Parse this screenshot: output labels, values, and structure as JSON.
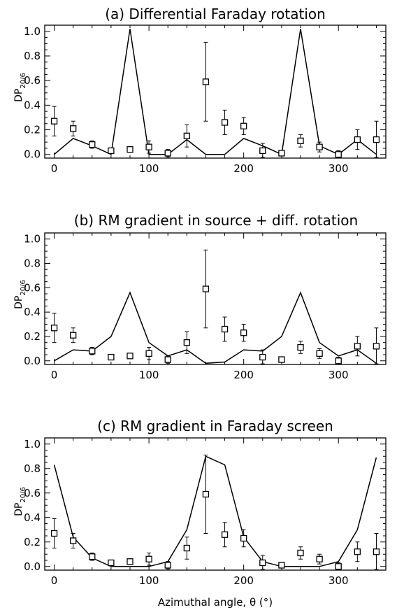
{
  "chart_data": [
    {
      "type": "line",
      "title": "(a) Differential Faraday rotation",
      "ylabel": "DP",
      "ylabel_sub": "20/6",
      "xlabel": "",
      "xlim": [
        -10,
        350
      ],
      "ylim": [
        -0.03,
        1.05
      ],
      "xticks": [
        "0",
        "100",
        "200",
        "300"
      ],
      "yticks": [
        "0.0",
        "0.2",
        "0.4",
        "0.6",
        "0.8",
        "1.0"
      ],
      "grid": false,
      "legend": "none",
      "series": [
        {
          "kind": "line",
          "x": [
            0,
            20,
            40,
            60,
            80,
            100,
            120,
            140,
            160,
            180,
            200,
            220,
            240,
            260,
            280,
            300,
            320,
            340
          ],
          "y": [
            0.0,
            0.13,
            0.07,
            0.0,
            1.02,
            0.0,
            0.0,
            0.12,
            0.0,
            0.0,
            0.13,
            0.07,
            0.0,
            1.02,
            0.07,
            0.0,
            0.12,
            0.0
          ]
        },
        {
          "kind": "points",
          "marker": "square",
          "x": [
            0,
            20,
            40,
            60,
            80,
            100,
            120,
            140,
            160,
            180,
            200,
            220,
            240,
            260,
            280,
            300,
            320,
            340
          ],
          "y": [
            0.27,
            0.21,
            0.08,
            0.03,
            0.04,
            0.06,
            0.01,
            0.15,
            0.59,
            0.26,
            0.23,
            0.03,
            0.01,
            0.11,
            0.06,
            0.0,
            0.12,
            0.12
          ],
          "err": [
            0.12,
            0.06,
            0.03,
            0.02,
            0.02,
            0.05,
            0.03,
            0.09,
            0.32,
            0.1,
            0.07,
            0.06,
            0.02,
            0.05,
            0.04,
            0.03,
            0.08,
            0.15
          ]
        }
      ]
    },
    {
      "type": "line",
      "title": "(b) RM gradient in source + diff. rotation",
      "ylabel": "DP",
      "ylabel_sub": "20/6",
      "xlabel": "",
      "xlim": [
        -10,
        350
      ],
      "ylim": [
        -0.03,
        1.05
      ],
      "xticks": [
        "0",
        "100",
        "200",
        "300"
      ],
      "yticks": [
        "0.0",
        "0.2",
        "0.4",
        "0.6",
        "0.8",
        "1.0"
      ],
      "grid": false,
      "legend": "none",
      "series": [
        {
          "kind": "line",
          "x": [
            0,
            20,
            40,
            60,
            80,
            100,
            120,
            140,
            160,
            180,
            200,
            220,
            240,
            260,
            280,
            300,
            320,
            340
          ],
          "y": [
            0.0,
            0.09,
            0.08,
            0.2,
            0.56,
            0.15,
            0.04,
            0.09,
            -0.02,
            -0.01,
            0.09,
            0.08,
            0.2,
            0.56,
            0.15,
            0.04,
            0.09,
            -0.02
          ]
        },
        {
          "kind": "points",
          "marker": "square",
          "x": [
            0,
            20,
            40,
            60,
            80,
            100,
            120,
            140,
            160,
            180,
            200,
            220,
            240,
            260,
            280,
            300,
            320,
            340
          ],
          "y": [
            0.27,
            0.21,
            0.08,
            0.03,
            0.04,
            0.06,
            0.01,
            0.15,
            0.59,
            0.26,
            0.23,
            0.03,
            0.01,
            0.11,
            0.06,
            0.0,
            0.12,
            0.12
          ],
          "err": [
            0.12,
            0.06,
            0.03,
            0.02,
            0.02,
            0.05,
            0.03,
            0.09,
            0.32,
            0.1,
            0.07,
            0.06,
            0.02,
            0.05,
            0.04,
            0.03,
            0.08,
            0.15
          ]
        }
      ]
    },
    {
      "type": "line",
      "title": "(c) RM gradient in Faraday screen",
      "ylabel": "DP",
      "ylabel_sub": "20/6",
      "xlabel": "Azimuthal angle, θ (°)",
      "xlim": [
        -10,
        350
      ],
      "ylim": [
        -0.03,
        1.05
      ],
      "xticks": [
        "0",
        "100",
        "200",
        "300"
      ],
      "yticks": [
        "0.0",
        "0.2",
        "0.4",
        "0.6",
        "0.8",
        "1.0"
      ],
      "grid": false,
      "legend": "none",
      "series": [
        {
          "kind": "line",
          "x": [
            0,
            20,
            40,
            60,
            80,
            100,
            120,
            140,
            160,
            180,
            200,
            220,
            240,
            260,
            280,
            300,
            320,
            340
          ],
          "y": [
            0.83,
            0.24,
            0.07,
            0.0,
            0.0,
            0.0,
            0.04,
            0.3,
            0.9,
            0.83,
            0.24,
            0.04,
            0.0,
            0.0,
            0.0,
            0.04,
            0.3,
            0.89
          ]
        },
        {
          "kind": "points",
          "marker": "square",
          "x": [
            0,
            20,
            40,
            60,
            80,
            100,
            120,
            140,
            160,
            180,
            200,
            220,
            240,
            260,
            280,
            300,
            320,
            340
          ],
          "y": [
            0.27,
            0.21,
            0.08,
            0.03,
            0.04,
            0.06,
            0.01,
            0.15,
            0.59,
            0.26,
            0.23,
            0.03,
            0.01,
            0.11,
            0.06,
            0.0,
            0.12,
            0.12
          ],
          "err": [
            0.12,
            0.06,
            0.03,
            0.02,
            0.02,
            0.05,
            0.03,
            0.09,
            0.32,
            0.1,
            0.07,
            0.06,
            0.02,
            0.05,
            0.04,
            0.03,
            0.08,
            0.15
          ]
        }
      ]
    }
  ]
}
